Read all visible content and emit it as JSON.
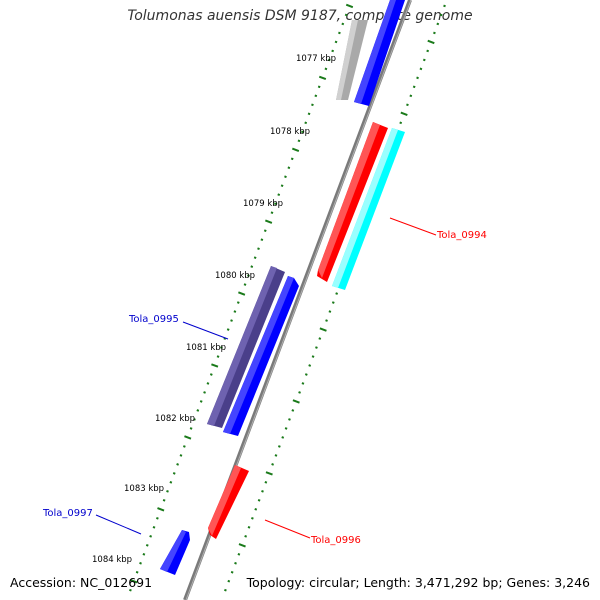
{
  "title": "Tolumonas auensis DSM 9187, complete genome",
  "footer": {
    "accession": "Accession: NC_012691",
    "summary": "Topology: circular; Length: 3,471,292 bp; Genes: 3,246"
  },
  "ticks": [
    "1077 kbp",
    "1078 kbp",
    "1079 kbp",
    "1080 kbp",
    "1081 kbp",
    "1082 kbp",
    "1083 kbp",
    "1084 kbp"
  ],
  "gene_labels": [
    {
      "text": "Tola_0994",
      "color": "#ff0000"
    },
    {
      "text": "Tola_0995",
      "color": "#0000cc"
    },
    {
      "text": "Tola_0996",
      "color": "#ff0000"
    },
    {
      "text": "Tola_0997",
      "color": "#0000cc"
    }
  ],
  "colors": {
    "backbone": "#808080",
    "tick": "#1a7a1a",
    "blue": "#0000ff",
    "red": "#ff0000",
    "cyan": "#00ffff",
    "indigo": "#4a3f8a",
    "gray": "#a9a9a9"
  }
}
